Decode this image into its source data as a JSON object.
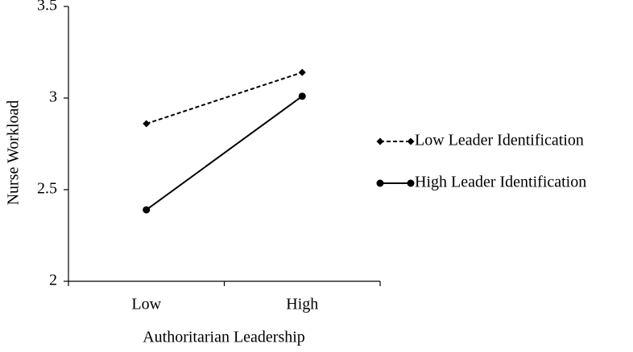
{
  "chart_data": {
    "type": "line",
    "y_label": "Nurse Workload",
    "x_label": "Authoritarian Leadership",
    "categories": [
      "Low",
      "High"
    ],
    "series": [
      {
        "name": "Low Leader Identification",
        "color": "#000000",
        "line_style": "dashed",
        "marker": "diamond",
        "values": [
          2.86,
          3.14
        ]
      },
      {
        "name": "High Leader Identification",
        "color": "#000000",
        "line_style": "solid",
        "marker": "circle",
        "values": [
          2.39,
          3.01
        ]
      }
    ],
    "ylim": [
      2,
      3.5
    ],
    "yticks": [
      2,
      2.5,
      3,
      3.5
    ],
    "grid": false,
    "legend": "right"
  }
}
